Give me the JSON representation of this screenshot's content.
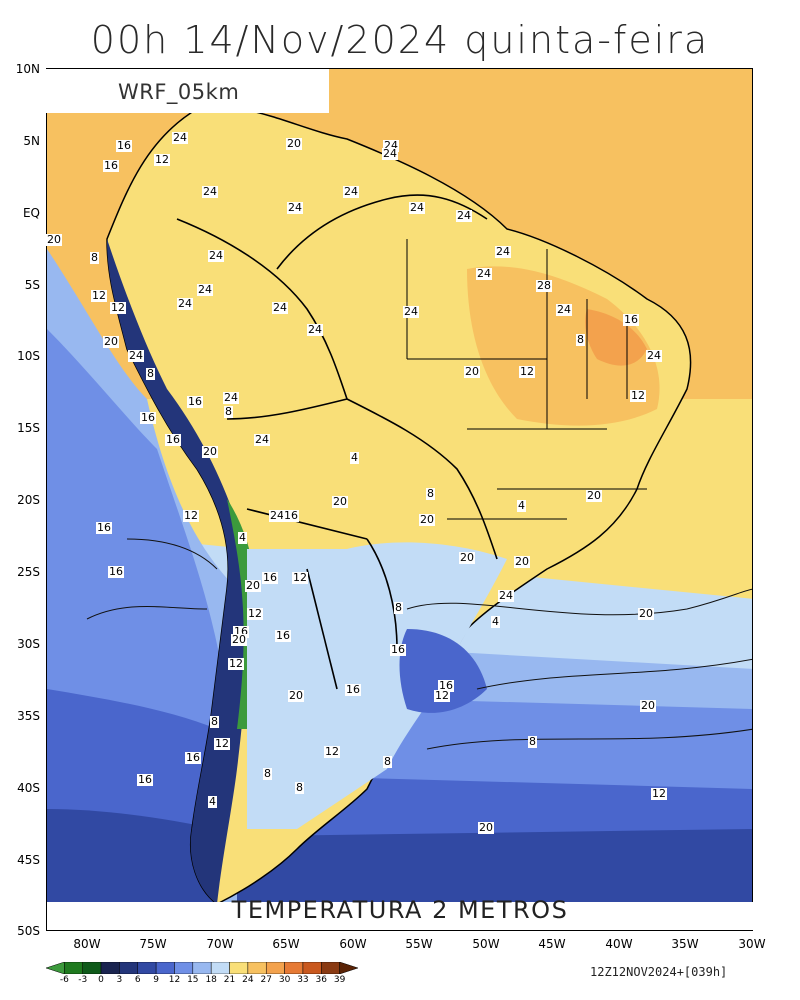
{
  "title": "00h 14/Nov/2024 quinta-feira",
  "model_label": "WRF_05km",
  "variable_label": "TEMPERATURA 2 METROS",
  "run_info": "12Z12NOV2024+[039h]",
  "lat_ticks": [
    "10N",
    "5N",
    "EQ",
    "5S",
    "10S",
    "15S",
    "20S",
    "25S",
    "30S",
    "35S",
    "40S",
    "45S",
    "50S"
  ],
  "lon_ticks": [
    "80W",
    "75W",
    "70W",
    "65W",
    "60W",
    "55W",
    "50W",
    "45W",
    "40W",
    "35W",
    "30W"
  ],
  "colorbar": {
    "ticks": [
      "-6",
      "-3",
      "0",
      "3",
      "6",
      "9",
      "12",
      "15",
      "18",
      "21",
      "24",
      "27",
      "30",
      "33",
      "36",
      "39"
    ],
    "colors": [
      "#3c9a3c",
      "#1f7a1f",
      "#0f5a1a",
      "#1a2450",
      "#23357a",
      "#3149a3",
      "#4a66cc",
      "#6f8fe6",
      "#98b8f0",
      "#c2dcf6",
      "#f9df78",
      "#f7c160",
      "#f3a24d",
      "#e67a35",
      "#c9581e",
      "#8a3a12",
      "#5a2306"
    ]
  },
  "contour_labels": [
    "24",
    "16",
    "12",
    "16",
    "20",
    "24",
    "24",
    "24",
    "24",
    "24",
    "24",
    "24",
    "24",
    "20",
    "8",
    "24",
    "24",
    "24",
    "12",
    "12",
    "24",
    "24",
    "24",
    "24",
    "28",
    "24",
    "16",
    "8",
    "20",
    "24",
    "24",
    "8",
    "20",
    "12",
    "16",
    "12",
    "8",
    "24",
    "16",
    "16",
    "24",
    "20",
    "4",
    "8",
    "20",
    "20",
    "4",
    "24",
    "16",
    "16",
    "12",
    "20",
    "4",
    "20",
    "20",
    "16",
    "16",
    "12",
    "20",
    "24",
    "8",
    "20",
    "12",
    "16",
    "16",
    "20",
    "4",
    "16",
    "12",
    "16",
    "20",
    "16",
    "12",
    "20",
    "16",
    "8",
    "12",
    "16",
    "12",
    "8",
    "8",
    "8",
    "8",
    "4",
    "12",
    "20"
  ]
}
